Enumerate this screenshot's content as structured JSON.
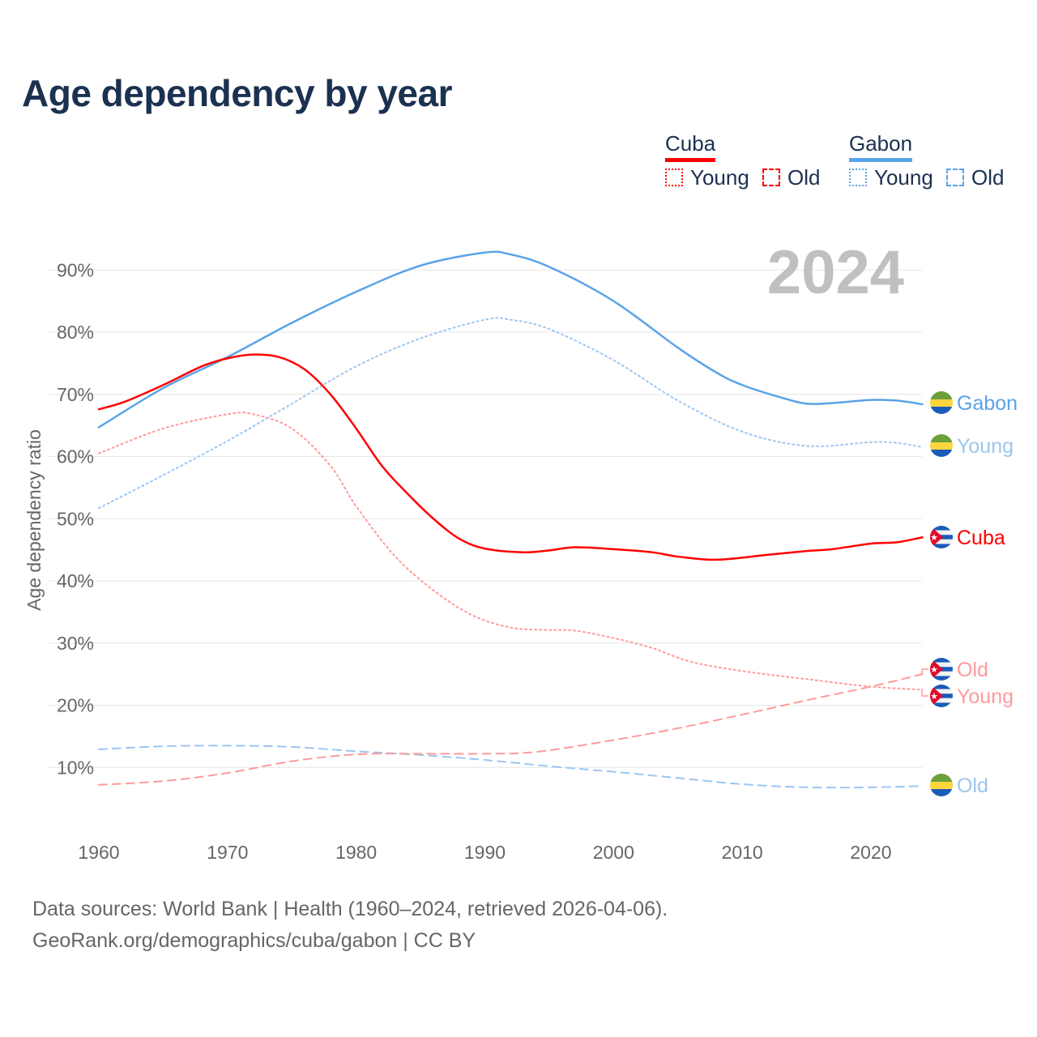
{
  "title": "Age dependency by year",
  "legend": {
    "groups": [
      {
        "name": "Cuba",
        "color": "#ff0000",
        "young_label": "Young",
        "old_label": "Old"
      },
      {
        "name": "Gabon",
        "color": "#5aa3e8",
        "young_label": "Young",
        "old_label": "Old"
      }
    ]
  },
  "footer": {
    "line1": "Data sources: World Bank | Health (1960–2024, retrieved 2026-04-06).",
    "line2": "GeoRank.org/demographics/cuba/gabon | CC BY"
  },
  "chart_data": {
    "type": "line",
    "title": "Age dependency by year",
    "xlabel": "",
    "ylabel": "Age dependency ratio",
    "year_watermark": "2024",
    "xlim": [
      1960,
      2024
    ],
    "ylim": [
      0,
      95
    ],
    "x_ticks": [
      "1960",
      "1970",
      "1980",
      "1990",
      "2000",
      "2010",
      "2020"
    ],
    "y_ticks": [
      "10%",
      "20%",
      "30%",
      "40%",
      "50%",
      "60%",
      "70%",
      "80%",
      "90%"
    ],
    "grid": true,
    "series": [
      {
        "name": "Gabon",
        "end_label": "Gabon",
        "country": "Gabon",
        "style": "solid",
        "color": "#5aa3e8",
        "points": [
          [
            1960,
            64.7
          ],
          [
            1965,
            71
          ],
          [
            1970,
            76
          ],
          [
            1975,
            81.5
          ],
          [
            1980,
            86.5
          ],
          [
            1985,
            90.7
          ],
          [
            1990,
            92.8
          ],
          [
            1992,
            92.5
          ],
          [
            1995,
            90.5
          ],
          [
            2000,
            85
          ],
          [
            2005,
            77.5
          ],
          [
            2008,
            73.5
          ],
          [
            2010,
            71.5
          ],
          [
            2013,
            69.5
          ],
          [
            2015,
            68.5
          ],
          [
            2017,
            68.6
          ],
          [
            2020,
            69.1
          ],
          [
            2022,
            69
          ],
          [
            2024,
            68.4
          ]
        ]
      },
      {
        "name": "Gabon Young",
        "end_label": "Young",
        "country": "Gabon",
        "style": "dotted",
        "color": "#9cc6f0",
        "points": [
          [
            1960,
            51.7
          ],
          [
            1965,
            57
          ],
          [
            1970,
            62.5
          ],
          [
            1975,
            68.5
          ],
          [
            1980,
            74.5
          ],
          [
            1985,
            79
          ],
          [
            1990,
            82
          ],
          [
            1992,
            82
          ],
          [
            1995,
            80.5
          ],
          [
            2000,
            75.5
          ],
          [
            2005,
            69
          ],
          [
            2010,
            64
          ],
          [
            2015,
            61.7
          ],
          [
            2020,
            62.3
          ],
          [
            2022,
            62.2
          ],
          [
            2024,
            61.5
          ]
        ]
      },
      {
        "name": "Gabon Old",
        "end_label": "Old",
        "country": "Gabon",
        "style": "dashed",
        "color": "#9cc6f0",
        "points": [
          [
            1960,
            12.9
          ],
          [
            1965,
            13.4
          ],
          [
            1970,
            13.5
          ],
          [
            1975,
            13.3
          ],
          [
            1980,
            12.6
          ],
          [
            1985,
            12
          ],
          [
            1990,
            11.2
          ],
          [
            1995,
            10.2
          ],
          [
            2000,
            9.3
          ],
          [
            2005,
            8.3
          ],
          [
            2010,
            7.3
          ],
          [
            2015,
            6.8
          ],
          [
            2020,
            6.8
          ],
          [
            2024,
            7.0
          ]
        ]
      },
      {
        "name": "Cuba",
        "end_label": "Cuba",
        "country": "Cuba",
        "style": "solid",
        "color": "#ff0000",
        "points": [
          [
            1960,
            67.6
          ],
          [
            1962,
            68.8
          ],
          [
            1965,
            71.5
          ],
          [
            1968,
            74.5
          ],
          [
            1970,
            75.8
          ],
          [
            1972,
            76.4
          ],
          [
            1974,
            76
          ],
          [
            1976,
            74
          ],
          [
            1978,
            70
          ],
          [
            1980,
            64.5
          ],
          [
            1982,
            58.5
          ],
          [
            1984,
            54
          ],
          [
            1986,
            50
          ],
          [
            1988,
            46.8
          ],
          [
            1990,
            45.2
          ],
          [
            1993,
            44.6
          ],
          [
            1995,
            44.9
          ],
          [
            1997,
            45.4
          ],
          [
            2000,
            45.1
          ],
          [
            2003,
            44.6
          ],
          [
            2005,
            43.9
          ],
          [
            2008,
            43.4
          ],
          [
            2012,
            44.2
          ],
          [
            2015,
            44.8
          ],
          [
            2017,
            45.1
          ],
          [
            2020,
            46
          ],
          [
            2022,
            46.2
          ],
          [
            2024,
            47
          ]
        ]
      },
      {
        "name": "Cuba Old",
        "end_label": "Old",
        "country": "Cuba",
        "style": "dashed",
        "color": "#ff9a9a",
        "points": [
          [
            1960,
            7.2
          ],
          [
            1965,
            7.8
          ],
          [
            1970,
            9.1
          ],
          [
            1975,
            11
          ],
          [
            1980,
            12.1
          ],
          [
            1985,
            12.2
          ],
          [
            1990,
            12.2
          ],
          [
            1994,
            12.5
          ],
          [
            2000,
            14.4
          ],
          [
            2005,
            16.3
          ],
          [
            2010,
            18.5
          ],
          [
            2015,
            20.8
          ],
          [
            2020,
            23
          ],
          [
            2024,
            25
          ]
        ]
      },
      {
        "name": "Cuba Young",
        "end_label": "Young",
        "country": "Cuba",
        "style": "dotted",
        "color": "#ff9a9a",
        "points": [
          [
            1960,
            60.5
          ],
          [
            1965,
            64.5
          ],
          [
            1970,
            66.8
          ],
          [
            1972,
            66.8
          ],
          [
            1975,
            64.5
          ],
          [
            1978,
            58.5
          ],
          [
            1980,
            52
          ],
          [
            1983,
            44
          ],
          [
            1986,
            38.5
          ],
          [
            1989,
            34.5
          ],
          [
            1992,
            32.5
          ],
          [
            1995,
            32.1
          ],
          [
            1997,
            32
          ],
          [
            2000,
            30.8
          ],
          [
            2003,
            29.2
          ],
          [
            2006,
            27
          ],
          [
            2010,
            25.5
          ],
          [
            2015,
            24.2
          ],
          [
            2020,
            23
          ],
          [
            2024,
            22.5
          ]
        ]
      }
    ]
  }
}
